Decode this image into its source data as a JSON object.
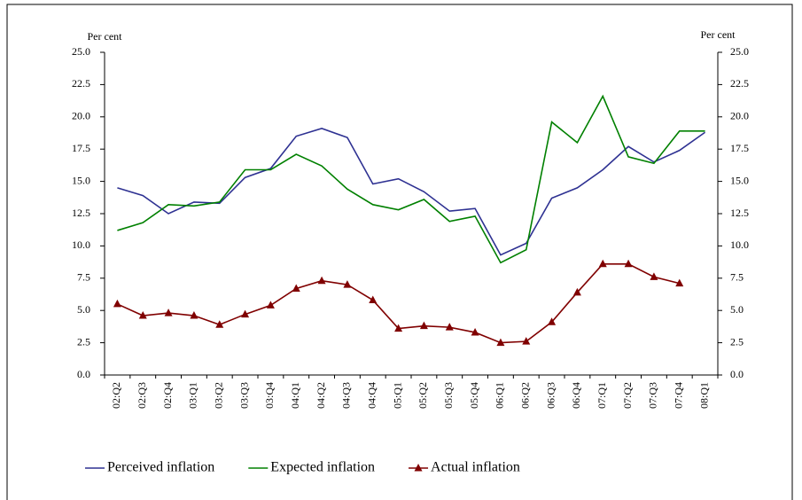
{
  "chart_data": {
    "type": "line",
    "y_label": "Per cent",
    "y2_label": "Per cent",
    "categories": [
      "02:Q2",
      "02:Q3",
      "02:Q4",
      "03:Q1",
      "03:Q2",
      "03:Q3",
      "03:Q4",
      "04:Q1",
      "04:Q2",
      "04:Q3",
      "04:Q4",
      "05:Q1",
      "05:Q2",
      "05:Q3",
      "05:Q4",
      "06:Q1",
      "06:Q2",
      "06:Q3",
      "06:Q4",
      "07:Q1",
      "07:Q2",
      "07:Q3",
      "07:Q4",
      "08:Q1"
    ],
    "series": [
      {
        "name": "Perceived inflation",
        "color": "#2e3192",
        "values": [
          14.5,
          13.9,
          12.5,
          13.4,
          13.3,
          15.3,
          16.0,
          18.5,
          19.1,
          18.4,
          14.8,
          15.2,
          14.2,
          12.7,
          12.9,
          9.3,
          10.2,
          13.7,
          14.5,
          15.9,
          17.7,
          16.5,
          17.4,
          18.8
        ]
      },
      {
        "name": "Expected inflation",
        "color": "#008000",
        "values": [
          11.2,
          11.8,
          13.2,
          13.1,
          13.4,
          15.9,
          15.9,
          17.1,
          16.2,
          14.4,
          13.2,
          12.8,
          13.6,
          11.9,
          12.3,
          8.7,
          9.7,
          19.6,
          18.0,
          21.6,
          16.9,
          16.4,
          18.9,
          18.9
        ]
      },
      {
        "name": "Actual inflation",
        "color": "#800000",
        "marker": "triangle",
        "values": [
          5.5,
          4.6,
          4.8,
          4.6,
          3.9,
          4.7,
          5.4,
          6.7,
          7.3,
          7.0,
          5.8,
          3.6,
          3.8,
          3.7,
          3.3,
          2.5,
          2.6,
          4.1,
          6.4,
          8.6,
          8.6,
          7.6,
          7.1,
          null
        ]
      }
    ],
    "ylim": [
      0,
      25
    ],
    "yticks": [
      {
        "value": 0,
        "label": "0.0"
      },
      2.5,
      {
        "value": 5,
        "label": "5.0"
      },
      7.5,
      {
        "value": 10,
        "label": "10.0"
      },
      12.5,
      {
        "value": 15,
        "label": "15.0"
      },
      17.5,
      {
        "value": 20,
        "label": "20.0"
      },
      22.5,
      {
        "value": 25,
        "label": "25.0"
      }
    ],
    "y2lim": [
      0,
      25
    ],
    "y2ticks": [
      {
        "value": 0,
        "label": "0.0"
      },
      2.5,
      {
        "value": 5,
        "label": "5.0"
      },
      7.5,
      {
        "value": 10,
        "label": "10.0"
      },
      12.5,
      {
        "value": 15,
        "label": "15.0"
      },
      17.5,
      {
        "value": 20,
        "label": "20.0"
      },
      22.5,
      {
        "value": 25,
        "label": "25.0"
      }
    ],
    "legend": "bottom",
    "grid": false
  }
}
